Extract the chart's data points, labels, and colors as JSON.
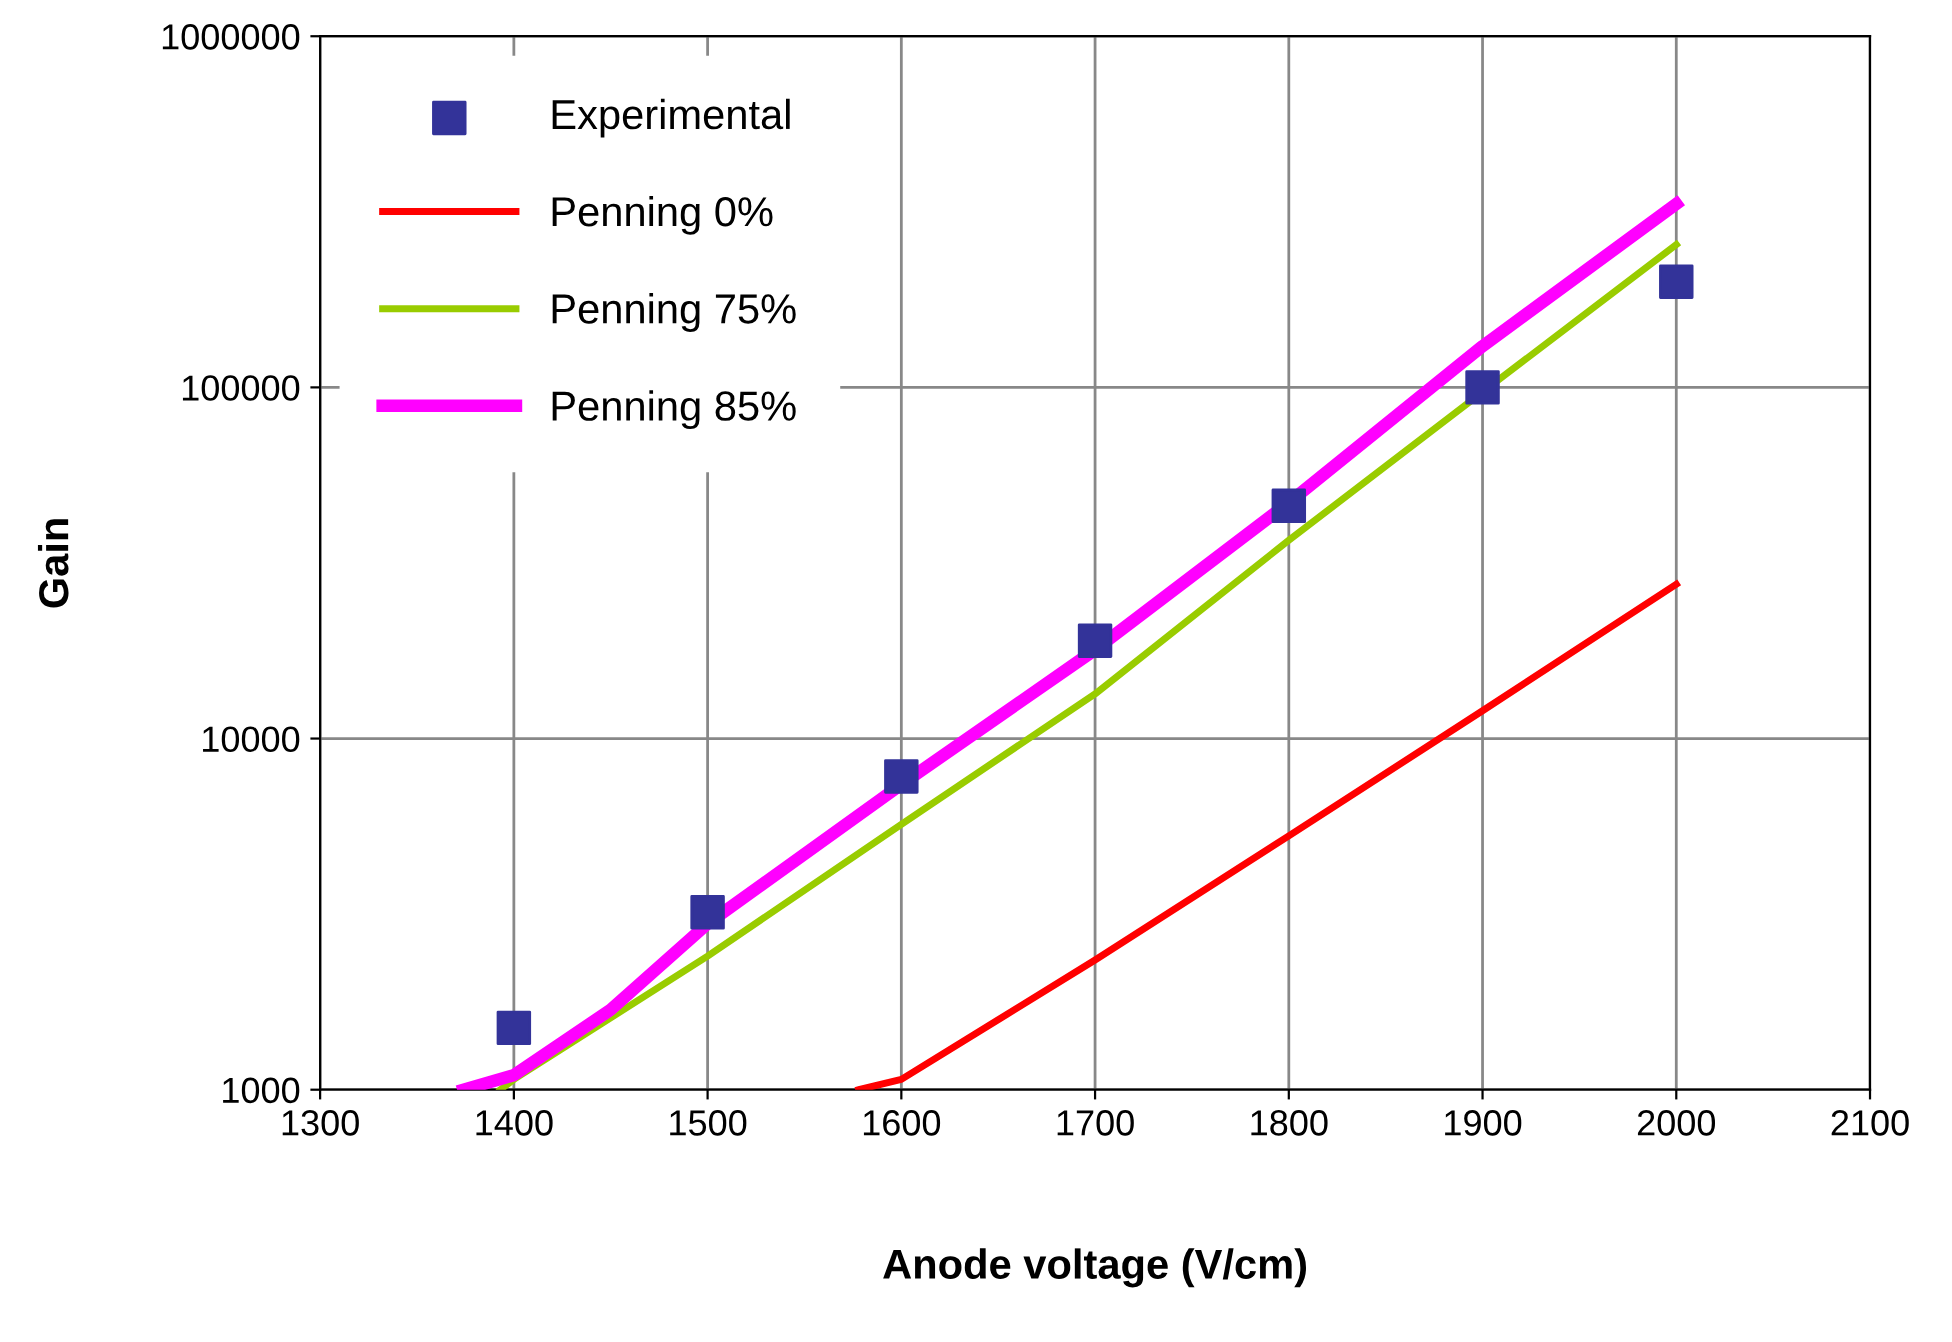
{
  "chart_data": {
    "type": "line",
    "xlabel": "Anode voltage (V/cm)",
    "ylabel": "Gain",
    "xlim": [
      1300,
      2100
    ],
    "xticks": [
      1300,
      1400,
      1500,
      1600,
      1700,
      1800,
      1900,
      2000,
      2100
    ],
    "ylim": [
      1000,
      1000000
    ],
    "yticks": [
      1000,
      10000,
      100000,
      1000000
    ],
    "log": true,
    "grid": true,
    "legend": "top left",
    "series": [
      {
        "name": "Experimental",
        "type": "scatter",
        "marker": "square",
        "color": "#333399",
        "x": [
          1400,
          1500,
          1600,
          1700,
          1800,
          1900,
          2000
        ],
        "values": [
          1500,
          3200,
          7800,
          19000,
          46000,
          100000,
          200000
        ]
      },
      {
        "name": "Penning 0%",
        "color": "#ff0000",
        "x": [
          1578,
          1600,
          1700,
          1800,
          1900,
          2000
        ],
        "values": [
          1000,
          1070,
          2340,
          5280,
          12000,
          27500
        ]
      },
      {
        "name": "Penning 75%",
        "color": "#99cc00",
        "x": [
          1393,
          1400,
          1500,
          1600,
          1700,
          1800,
          1900,
          2000
        ],
        "values": [
          1000,
          1070,
          2400,
          5700,
          13400,
          36700,
          97000,
          255000
        ]
      },
      {
        "name": "Penning 85%",
        "color": "#ff00ff",
        "x": [
          1374,
          1400,
          1450,
          1500,
          1600,
          1700,
          1800,
          1900,
          2000
        ],
        "values": [
          1000,
          1100,
          1690,
          2970,
          7400,
          17900,
          47000,
          131000,
          333000
        ]
      }
    ]
  }
}
